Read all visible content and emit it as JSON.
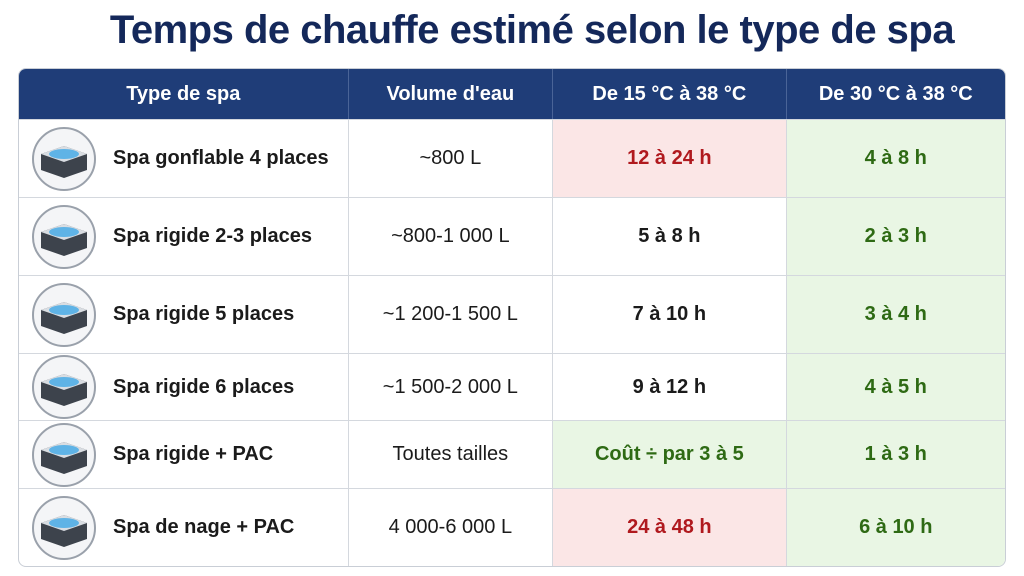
{
  "header": {
    "title": "Temps de chauffe estimé selon le type de spa"
  },
  "table": {
    "columns": [
      "Type de spa",
      "Volume d'eau",
      "De 15 °C à 38 °C",
      "De 30 °C à 38 °C"
    ],
    "rows": [
      [
        "Spa gonflable 4 places",
        "~800 L",
        "12 à 24 h",
        "4 à 8 h"
      ],
      [
        "Spa rigide 2-3 places",
        "~800-1 000 L",
        "5 à 8 h",
        "2 à 3 h"
      ],
      [
        "Spa rigide 5 places",
        "~1 200-1 500 L",
        "7 à 10 h",
        "3 à 4 h"
      ],
      [
        "Spa rigide 6 places",
        "~1 500-2 000 L",
        "9 à 12 h",
        "4 à 5 h"
      ],
      [
        "Spa rigide + PAC",
        "Toutes tailles",
        "Coût ÷ par 3 à 5",
        "1 à 3 h"
      ],
      [
        "Spa de nage + PAC",
        "4 000-6 000 L",
        "24 à 48 h",
        "6 à 10 h"
      ]
    ]
  }
}
